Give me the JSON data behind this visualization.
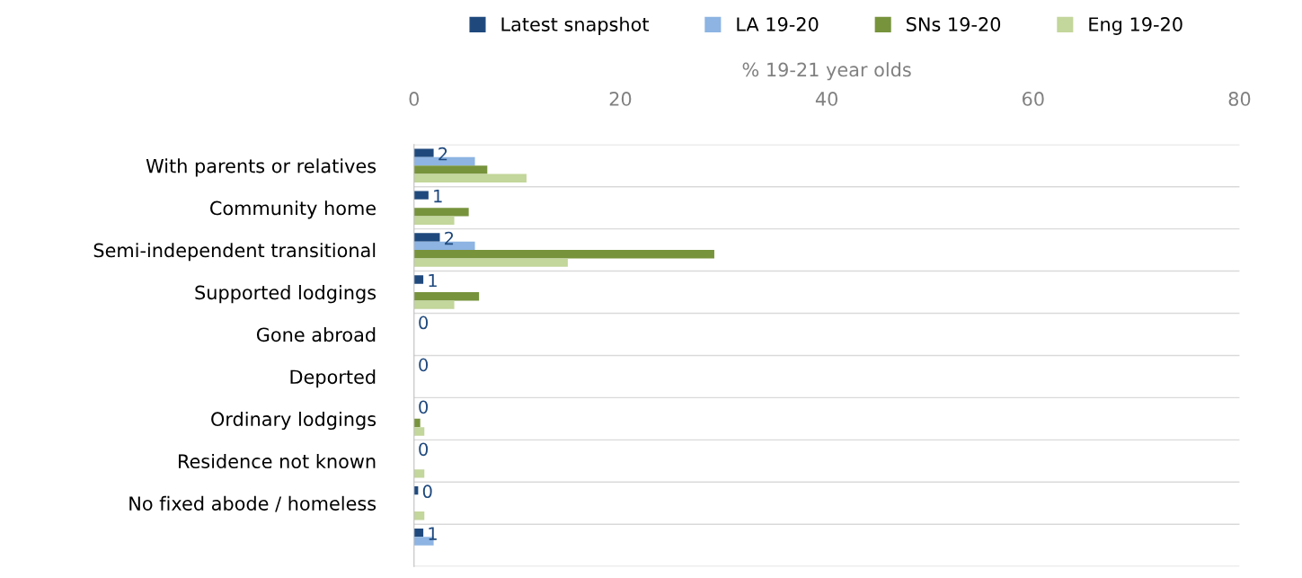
{
  "chart_data": {
    "type": "bar",
    "orientation": "horizontal",
    "xlabel": "% 19-21 year olds",
    "categories": [
      "With parents or relatives",
      "Community home",
      "Semi-independent transitional",
      "Supported lodgings",
      "Gone abroad",
      "Deported",
      "Ordinary lodgings",
      "Residence not known",
      "No fixed abode / homeless",
      null
    ],
    "series": [
      {
        "name": "Latest snapshot",
        "color": "#1f497d",
        "values": [
          1.9,
          1.4,
          2.5,
          0.9,
          0,
          0,
          0,
          0,
          0.4,
          0.9
        ],
        "value_labels": [
          "2",
          "1",
          "2",
          "1",
          "0",
          "0",
          "0",
          "0",
          "0",
          "1"
        ]
      },
      {
        "name": "LA 19-20",
        "color": "#8db4e2",
        "values": [
          5.9,
          0,
          5.9,
          0,
          0,
          0,
          0,
          0,
          0,
          1.9
        ]
      },
      {
        "name": "SNs 19-20",
        "color": "#77933c",
        "values": [
          7.1,
          5.3,
          29.1,
          6.3,
          0,
          0,
          0.6,
          0,
          0,
          null
        ]
      },
      {
        "name": "Eng 19-20",
        "color": "#c3d69b",
        "values": [
          10.9,
          3.9,
          14.9,
          3.9,
          0,
          0,
          1.0,
          1.0,
          1.0,
          null
        ]
      }
    ],
    "xlim": [
      0,
      80
    ],
    "xticks": [
      0,
      20,
      40,
      60,
      80
    ],
    "grid": "y",
    "legend": "top"
  }
}
